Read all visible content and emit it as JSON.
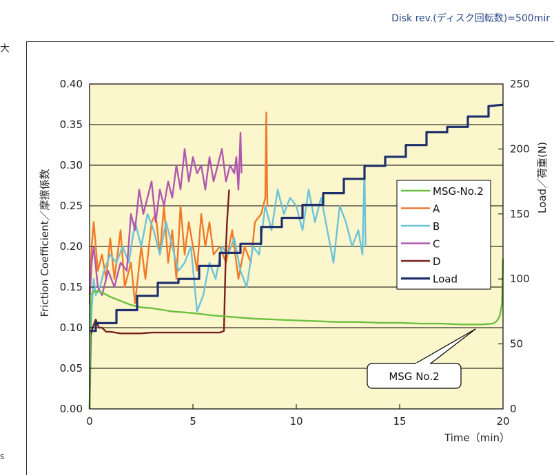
{
  "header_note": "Disk rev.(ディスク回転数)=500mir",
  "left_fragment_top": "大",
  "left_fragment_bottom": "s",
  "chart_data": {
    "type": "line",
    "xlabel": "Time（min）",
    "ylabel": "Friction Coefficient／摩擦係数",
    "y2label": "Load／荷重(N)",
    "xlim": [
      0,
      20
    ],
    "ylim": [
      0,
      0.4
    ],
    "y2lim": [
      0,
      250
    ],
    "x_ticks": [
      "0",
      "5",
      "10",
      "15",
      "20"
    ],
    "y_ticks": [
      "0.00",
      "0.05",
      "0.10",
      "0.15",
      "0.20",
      "0.25",
      "0.30",
      "0.35",
      "0.40"
    ],
    "y2_ticks": [
      "0",
      "50",
      "100",
      "150",
      "200",
      "250"
    ],
    "grid": "horizontal",
    "plot_background": "#fbf6cc",
    "legend_position": "right-center",
    "annotation": "MSG No.2",
    "series": [
      {
        "name": "MSG-No.2",
        "color": "#6cbf3f",
        "axis": "left",
        "x": [
          0,
          0.05,
          0.2,
          0.4,
          0.7,
          1,
          1.5,
          2,
          2.5,
          3,
          3.5,
          4,
          5,
          6,
          7,
          8,
          9,
          10,
          11,
          12,
          13,
          14,
          15,
          16,
          17,
          18,
          19,
          19.5,
          19.7,
          19.85,
          19.95,
          20
        ],
        "y": [
          0.0,
          0.14,
          0.145,
          0.145,
          0.142,
          0.138,
          0.133,
          0.128,
          0.125,
          0.124,
          0.122,
          0.12,
          0.118,
          0.115,
          0.113,
          0.111,
          0.11,
          0.109,
          0.108,
          0.107,
          0.107,
          0.106,
          0.106,
          0.105,
          0.105,
          0.104,
          0.104,
          0.105,
          0.108,
          0.115,
          0.13,
          0.185
        ]
      },
      {
        "name": "A",
        "color": "#ee7a2a",
        "axis": "left",
        "x": [
          0,
          0.1,
          0.2,
          0.4,
          0.6,
          0.8,
          1,
          1.2,
          1.5,
          1.7,
          2,
          2.2,
          2.5,
          2.7,
          3,
          3.2,
          3.4,
          3.6,
          3.8,
          4,
          4.2,
          4.4,
          4.6,
          4.8,
          5,
          5.2,
          5.4,
          5.6,
          5.8,
          6,
          6.3,
          6.6,
          6.9,
          7.2,
          7.5,
          7.8,
          8.0,
          8.3,
          8.5,
          8.55,
          8.6
        ],
        "y": [
          0.14,
          0.2,
          0.23,
          0.17,
          0.19,
          0.16,
          0.21,
          0.16,
          0.22,
          0.15,
          0.18,
          0.13,
          0.2,
          0.16,
          0.23,
          0.24,
          0.19,
          0.25,
          0.18,
          0.22,
          0.16,
          0.25,
          0.19,
          0.23,
          0.2,
          0.17,
          0.24,
          0.2,
          0.23,
          0.19,
          0.2,
          0.18,
          0.22,
          0.16,
          0.2,
          0.18,
          0.23,
          0.24,
          0.26,
          0.365,
          0.25
        ]
      },
      {
        "name": "B",
        "color": "#6cc3d8",
        "axis": "left",
        "x": [
          0,
          0.1,
          0.2,
          0.3,
          0.5,
          0.7,
          1,
          1.3,
          1.6,
          1.9,
          2.2,
          2.5,
          2.8,
          3.1,
          3.4,
          3.7,
          4,
          4.3,
          4.6,
          4.9,
          5.2,
          5.5,
          5.8,
          6.1,
          6.4,
          6.7,
          7,
          7.3,
          7.6,
          7.9,
          8.2,
          8.5,
          8.8,
          9.1,
          9.4,
          9.7,
          10,
          10.3,
          10.6,
          10.9,
          11.2,
          11.5,
          11.8,
          12.1,
          12.4,
          12.7,
          13,
          13.2,
          13.3,
          13.35
        ],
        "y": [
          0.0,
          0.12,
          0.16,
          0.14,
          0.15,
          0.17,
          0.19,
          0.18,
          0.2,
          0.18,
          0.23,
          0.2,
          0.24,
          0.22,
          0.19,
          0.23,
          0.2,
          0.17,
          0.18,
          0.2,
          0.12,
          0.14,
          0.18,
          0.16,
          0.2,
          0.19,
          0.21,
          0.17,
          0.15,
          0.2,
          0.19,
          0.25,
          0.22,
          0.27,
          0.24,
          0.26,
          0.25,
          0.22,
          0.27,
          0.23,
          0.26,
          0.22,
          0.18,
          0.25,
          0.23,
          0.2,
          0.22,
          0.19,
          0.3,
          0.2
        ]
      },
      {
        "name": "C",
        "color": "#b058b0",
        "axis": "left",
        "x": [
          0,
          0.1,
          0.2,
          0.4,
          0.6,
          0.9,
          1.2,
          1.5,
          1.8,
          2.0,
          2.2,
          2.4,
          2.6,
          2.8,
          3.0,
          3.2,
          3.4,
          3.6,
          3.8,
          4.0,
          4.2,
          4.4,
          4.6,
          4.8,
          5.0,
          5.2,
          5.4,
          5.6,
          5.8,
          6.0,
          6.2,
          6.4,
          6.6,
          6.8,
          7.0,
          7.1,
          7.2,
          7.3,
          7.35
        ],
        "y": [
          0.13,
          0.18,
          0.2,
          0.15,
          0.14,
          0.17,
          0.15,
          0.18,
          0.17,
          0.24,
          0.22,
          0.27,
          0.24,
          0.26,
          0.28,
          0.23,
          0.27,
          0.25,
          0.28,
          0.26,
          0.3,
          0.27,
          0.32,
          0.28,
          0.31,
          0.29,
          0.3,
          0.27,
          0.31,
          0.28,
          0.3,
          0.32,
          0.28,
          0.3,
          0.29,
          0.31,
          0.27,
          0.34,
          0.29
        ]
      },
      {
        "name": "D",
        "color": "#7a1f1f",
        "axis": "left",
        "x": [
          0,
          0.05,
          0.15,
          0.3,
          0.45,
          0.6,
          0.8,
          1.0,
          1.5,
          2.0,
          2.5,
          3.0,
          3.5,
          4.0,
          4.5,
          5.0,
          5.5,
          6.0,
          6.3,
          6.5,
          6.55,
          6.6,
          6.65,
          6.7,
          6.75
        ],
        "y": [
          0.0,
          0.09,
          0.1,
          0.11,
          0.1,
          0.1,
          0.095,
          0.095,
          0.093,
          0.093,
          0.093,
          0.094,
          0.094,
          0.094,
          0.094,
          0.094,
          0.094,
          0.094,
          0.094,
          0.096,
          0.15,
          0.2,
          0.23,
          0.25,
          0.27
        ]
      },
      {
        "name": "Load",
        "color": "#1e2f6b",
        "axis": "right",
        "x": [
          0,
          0.3,
          0.3,
          1.3,
          1.3,
          2.3,
          2.3,
          3.3,
          3.3,
          4.3,
          4.3,
          5.3,
          5.3,
          6.3,
          6.3,
          7.3,
          7.3,
          8.3,
          8.3,
          9.3,
          9.3,
          10.3,
          10.3,
          11.3,
          11.3,
          12.3,
          12.3,
          13.3,
          13.3,
          14.3,
          14.3,
          15.3,
          15.3,
          16.3,
          16.3,
          17.3,
          17.3,
          18.3,
          18.3,
          19.3,
          19.3,
          20
        ],
        "y": [
          60,
          60,
          66,
          66,
          76,
          76,
          87,
          87,
          97,
          97,
          100,
          100,
          110,
          110,
          120,
          120,
          127,
          127,
          140,
          140,
          147,
          147,
          157,
          157,
          166,
          166,
          177,
          177,
          187,
          187,
          194,
          194,
          203,
          203,
          213,
          213,
          217,
          217,
          225,
          225,
          233,
          234
        ]
      }
    ]
  }
}
